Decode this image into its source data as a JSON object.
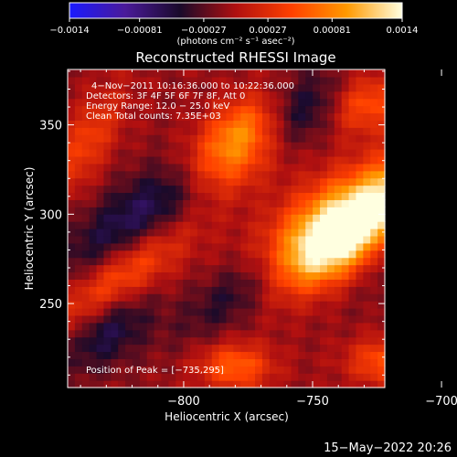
{
  "chart_data": {
    "type": "heatmap",
    "title": "Reconstructed RHESSI Image",
    "xlabel": "Heliocentric X (arcsec)",
    "ylabel": "Heliocentric Y (arcsec)",
    "xlim": [
      -845,
      -722
    ],
    "ylim": [
      203,
      381
    ],
    "xticks": [
      -800,
      -750,
      -700
    ],
    "yticks": [
      250,
      300,
      350
    ],
    "xtick_labels": [
      "−800",
      "−750",
      "−700"
    ],
    "ytick_labels": [
      "250",
      "300",
      "350"
    ],
    "colorbar": {
      "range": [
        -0.0014,
        0.0014
      ],
      "ticks": [
        -0.0014,
        -0.00081,
        -0.00027,
        0.00027,
        0.00081,
        0.0014
      ],
      "tick_labels": [
        "−0.0014",
        "−0.00081",
        "−0.00027",
        "0.00027",
        "0.00081",
        "0.0014"
      ],
      "label": "(photons cm⁻² s⁻¹ asec⁻²)",
      "colors": [
        "#1a1aff",
        "#4a1a9a",
        "#1a0a2a",
        "#b01010",
        "#ff4000",
        "#ff9900",
        "#ffffe0"
      ]
    },
    "info_lines": [
      "4−Nov−2011 10:16:36.000 to 10:22:36.000",
      "Detectors: 3F 4F 5F 6F 7F 8F, Att 0",
      "Energy Range: 12.0 − 25.0 keV",
      "Clean     Total counts: 7.35E+03"
    ],
    "peak_label": "Position of Peak = [−735,295]",
    "peak": {
      "x": -735,
      "y": 295
    },
    "blobs": [
      {
        "x": -737,
        "y": 297,
        "sx": 14,
        "sy": 24,
        "rot": -40,
        "amp": 1.0
      },
      {
        "x": -748,
        "y": 278,
        "sx": 11,
        "sy": 18,
        "rot": -40,
        "amp": 0.55
      },
      {
        "x": -784,
        "y": 330,
        "sx": 11,
        "sy": 16,
        "rot": -35,
        "amp": 0.6
      },
      {
        "x": -777,
        "y": 350,
        "sx": 9,
        "sy": 14,
        "rot": -30,
        "amp": 0.5
      },
      {
        "x": -708,
        "y": 326,
        "sx": 9,
        "sy": 30,
        "rot": -35,
        "amp": 0.55
      },
      {
        "x": -730,
        "y": 362,
        "sx": 10,
        "sy": 12,
        "rot": -30,
        "amp": 0.45
      },
      {
        "x": -825,
        "y": 265,
        "sx": 9,
        "sy": 30,
        "rot": -40,
        "amp": 0.55
      },
      {
        "x": -838,
        "y": 340,
        "sx": 7,
        "sy": 22,
        "rot": -20,
        "amp": 0.35
      },
      {
        "x": -780,
        "y": 215,
        "sx": 10,
        "sy": 9,
        "rot": 0,
        "amp": 0.5
      },
      {
        "x": -722,
        "y": 218,
        "sx": 10,
        "sy": 9,
        "rot": 0,
        "amp": 0.45
      },
      {
        "x": -705,
        "y": 250,
        "sx": 8,
        "sy": 10,
        "rot": 0,
        "amp": 0.35
      },
      {
        "x": -815,
        "y": 300,
        "sx": 12,
        "sy": 35,
        "rot": -40,
        "amp": -0.45
      },
      {
        "x": -778,
        "y": 258,
        "sx": 9,
        "sy": 24,
        "rot": -40,
        "amp": -0.3
      },
      {
        "x": -700,
        "y": 297,
        "sx": 9,
        "sy": 28,
        "rot": -35,
        "amp": -0.45
      },
      {
        "x": -830,
        "y": 236,
        "sx": 10,
        "sy": 18,
        "rot": -30,
        "amp": -0.4
      },
      {
        "x": -752,
        "y": 360,
        "sx": 10,
        "sy": 16,
        "rot": -30,
        "amp": -0.35
      }
    ]
  },
  "timestamp": "15−May−2022 20:26"
}
